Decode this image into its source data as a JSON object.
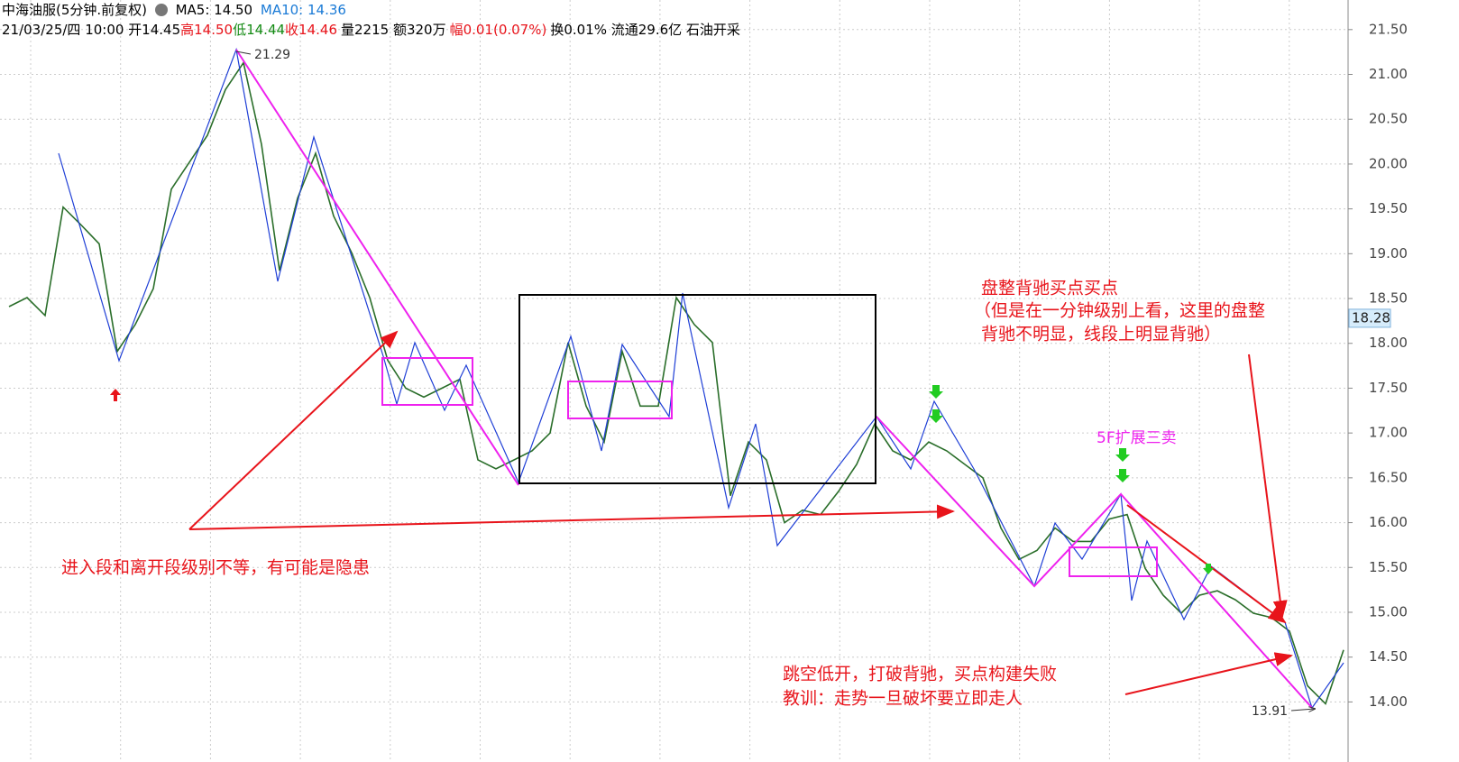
{
  "header": {
    "title": "中海油服(5分钟.前复权)",
    "ma5": "MA5: 14.50",
    "ma10": "MA10: 14.36",
    "date_open": "21/03/25/四 10:00 开14.45",
    "high": "高14.50",
    "low": "低14.44",
    "close": "收14.46",
    "volume": "量2215 额320万",
    "change": "幅0.01(0.07%)",
    "turnover": "换0.01% 流通29.6亿 石油开采"
  },
  "chart_data": {
    "type": "line",
    "color": "#2a6e2a",
    "values": [
      18.41,
      18.51,
      18.31,
      19.52,
      19.32,
      19.11,
      17.91,
      18.21,
      18.61,
      19.72,
      20.02,
      20.32,
      20.83,
      21.13,
      20.22,
      18.81,
      19.62,
      20.12,
      19.42,
      19.01,
      18.51,
      17.81,
      17.5,
      17.4,
      17.5,
      17.6,
      16.7,
      16.6,
      16.7,
      16.8,
      17.0,
      18.01,
      17.3,
      16.9,
      17.91,
      17.3,
      17.3,
      18.51,
      18.21,
      18.01,
      16.3,
      16.9,
      16.7,
      16.0,
      16.14,
      16.09,
      16.35,
      16.65,
      17.1,
      16.8,
      16.7,
      16.9,
      16.8,
      16.65,
      16.5,
      15.94,
      15.59,
      15.69,
      15.94,
      15.79,
      15.79,
      16.04,
      16.09,
      15.49,
      15.19,
      14.99,
      15.19,
      15.24,
      15.14,
      14.99,
      14.94,
      14.79,
      14.18,
      13.98,
      14.58
    ],
    "ylim": [
      13.33,
      21.83
    ],
    "yticks": [
      {
        "value": 14,
        "label": "14.00"
      },
      {
        "value": 14.5,
        "label": "14.50"
      },
      {
        "value": 15,
        "label": "15.00"
      },
      {
        "value": 15.5,
        "label": "15.50"
      },
      {
        "value": 16,
        "label": "16.00"
      },
      {
        "value": 16.5,
        "label": "16.50"
      },
      {
        "value": 17,
        "label": "17.00"
      },
      {
        "value": 17.5,
        "label": "17.50"
      },
      {
        "value": 18,
        "label": "18.00"
      },
      {
        "value": 18.5,
        "label": "18.50"
      },
      {
        "value": 19,
        "label": "19.00"
      },
      {
        "value": 19.5,
        "label": "19.50"
      },
      {
        "value": 20,
        "label": "20.00"
      },
      {
        "value": 20.5,
        "label": "20.50"
      },
      {
        "value": 21,
        "label": "21.00"
      },
      {
        "value": 21.5,
        "label": "21.50"
      }
    ],
    "grid": true,
    "last_price": 18.28,
    "high_mark": 21.29,
    "low_mark": 13.91,
    "notes": [
      "进入段和离开段级别不等，有可能是隐患",
      "盘整背驰买点买点",
      "（但是在一分钟级别上看，这里的盘整",
      "背驰不明显，线段上明显背驰）",
      "跳空低开，打破背驰，买点构建失败",
      "教训：走势一旦破坏要立即走人",
      "5F扩展三卖"
    ]
  }
}
